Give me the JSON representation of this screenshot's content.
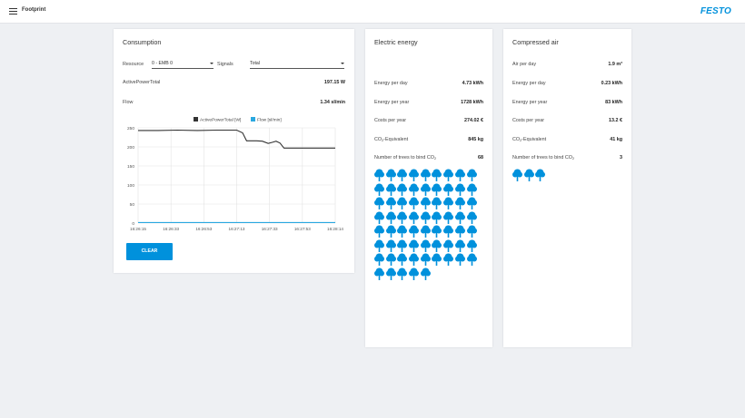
{
  "app": {
    "title": "Footprint",
    "logo": "FESTO",
    "accent_color": "#0091dc",
    "menu_icon": "hamburger-menu-icon"
  },
  "consumption": {
    "title": "Consumption",
    "resource_label": "Resource",
    "resource_value": "0 - EMB 0",
    "signals_label": "Signals",
    "signals_value": "Total",
    "rows": [
      {
        "label": "ActivePowerTotal",
        "value": "197.15 W"
      },
      {
        "label": "Flow",
        "value": "1.34 sl/min"
      }
    ],
    "clear_label": "CLEAR"
  },
  "electric": {
    "title": "Electric energy",
    "rows": [
      {
        "label": "Energy per day",
        "value": "4.73 kWh"
      },
      {
        "label": "Energy per year",
        "value": "1728 kWh"
      },
      {
        "label": "Costs per year",
        "value": "274.02 €"
      },
      {
        "label": "CO2-Equivalent",
        "value": "845 kg"
      },
      {
        "label": "Number of trees to bind CO2",
        "value": "68"
      }
    ],
    "tree_count": 68
  },
  "air": {
    "title": "Compressed air",
    "rows": [
      {
        "label": "Air per day",
        "value": "1.9 m³"
      },
      {
        "label": "Energy per day",
        "value": "0.23 kWh"
      },
      {
        "label": "Energy per year",
        "value": "83 kWh"
      },
      {
        "label": "Costs per year",
        "value": "13.2 €"
      },
      {
        "label": "CO2-Equivalent",
        "value": "41 kg"
      },
      {
        "label": "Number of trees to bind CO2",
        "value": "3"
      }
    ],
    "tree_count": 3
  },
  "chart_data": {
    "type": "line",
    "title": "",
    "xlabel": "",
    "ylabel": "",
    "ylim": [
      0,
      250
    ],
    "yticks": [
      0,
      50,
      100,
      150,
      200,
      250
    ],
    "xticks": [
      "16:26:15",
      "16:26:33",
      "16:26:53",
      "16:27:13",
      "16:27:33",
      "16:27:53",
      "16:28:14"
    ],
    "grid": true,
    "legend_position": "top",
    "series": [
      {
        "name": "ActivePowerTotal [W]",
        "color": "#333333",
        "points": [
          [
            0,
            243
          ],
          [
            10,
            243
          ],
          [
            20,
            244
          ],
          [
            30,
            243
          ],
          [
            40,
            244
          ],
          [
            48,
            244
          ],
          [
            50,
            244
          ],
          [
            53,
            237
          ],
          [
            55,
            216
          ],
          [
            60,
            216
          ],
          [
            63,
            215
          ],
          [
            66,
            209
          ],
          [
            68,
            212
          ],
          [
            70,
            215
          ],
          [
            72,
            210
          ],
          [
            74,
            197
          ],
          [
            80,
            197
          ],
          [
            90,
            197
          ],
          [
            100,
            197
          ]
        ]
      },
      {
        "name": "Flow [sl/min]",
        "color": "#2aa8e0",
        "points": [
          [
            0,
            1.34
          ],
          [
            100,
            1.34
          ]
        ]
      }
    ]
  }
}
